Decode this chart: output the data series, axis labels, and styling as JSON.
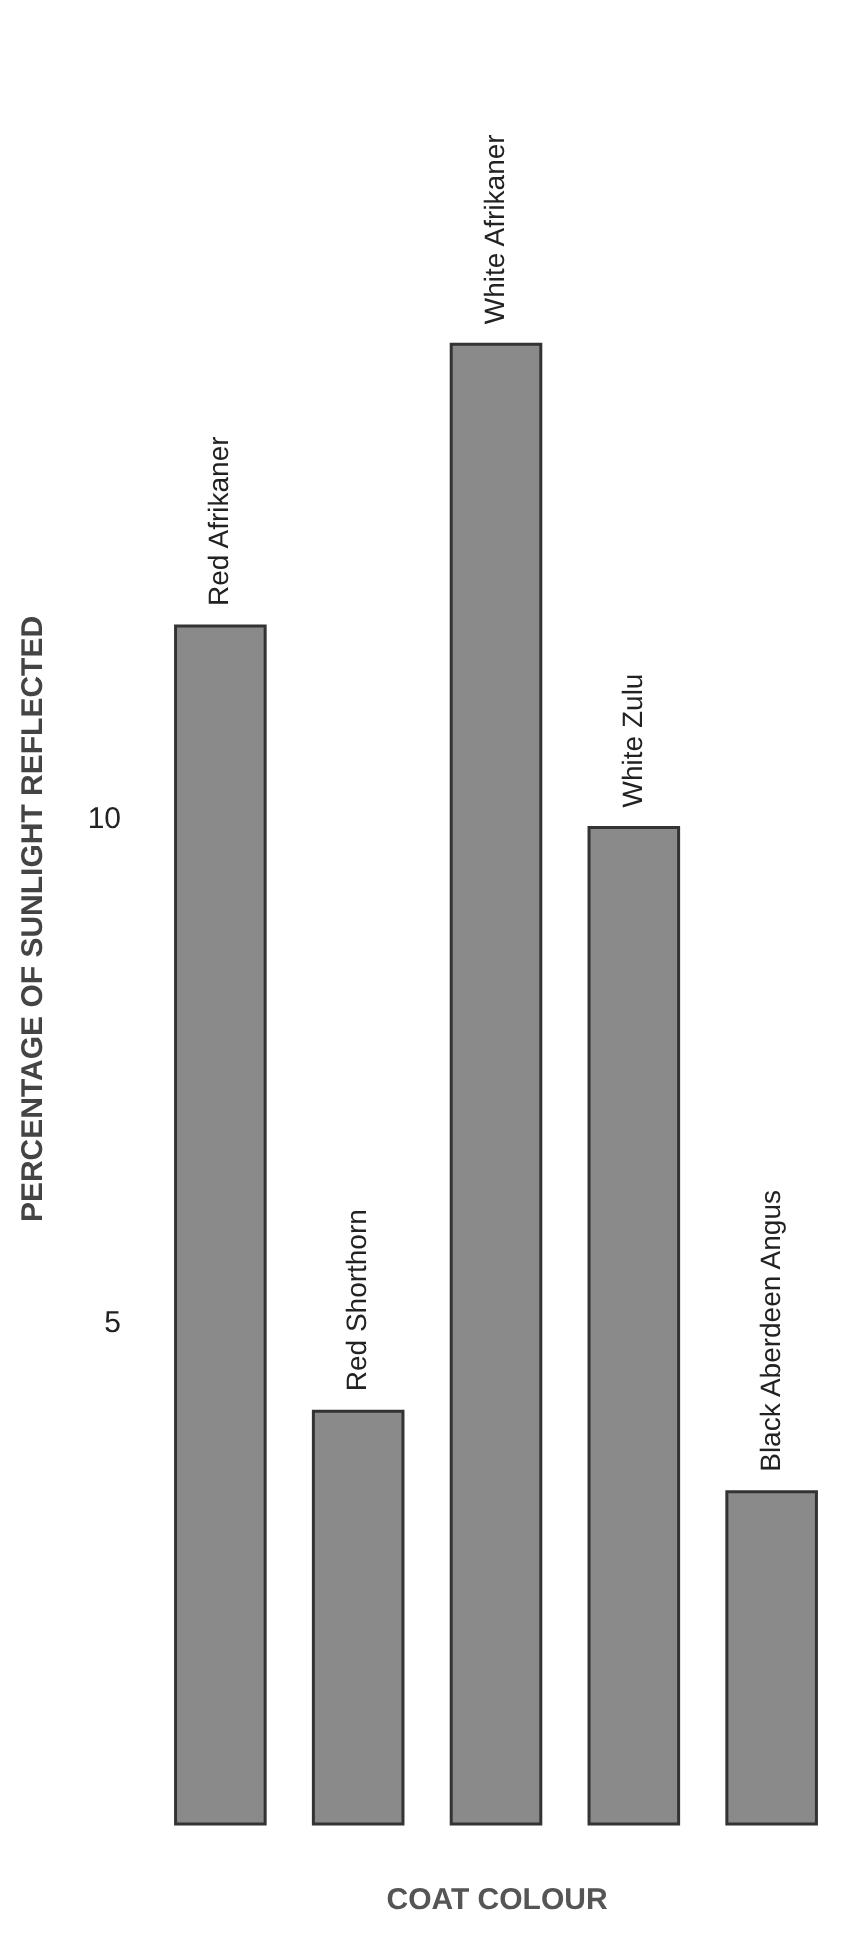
{
  "chart_data": {
    "type": "bar",
    "ylabel": "PERCENTAGE OF SUNLIGHT REFLECTED",
    "xlabel": "COAT COLOUR",
    "categories": [
      "Red Afrikaner",
      "Red Shorthorn",
      "White Afrikaner",
      "White Zulu",
      "Black Aberdeen Angus"
    ],
    "values": [
      11.9,
      4.1,
      14.7,
      9.9,
      3.3
    ],
    "color": "#8a8a8a",
    "ylim": [
      0,
      18
    ],
    "yticks": [
      5,
      10
    ],
    "grid": false,
    "tick_labels": "y"
  }
}
